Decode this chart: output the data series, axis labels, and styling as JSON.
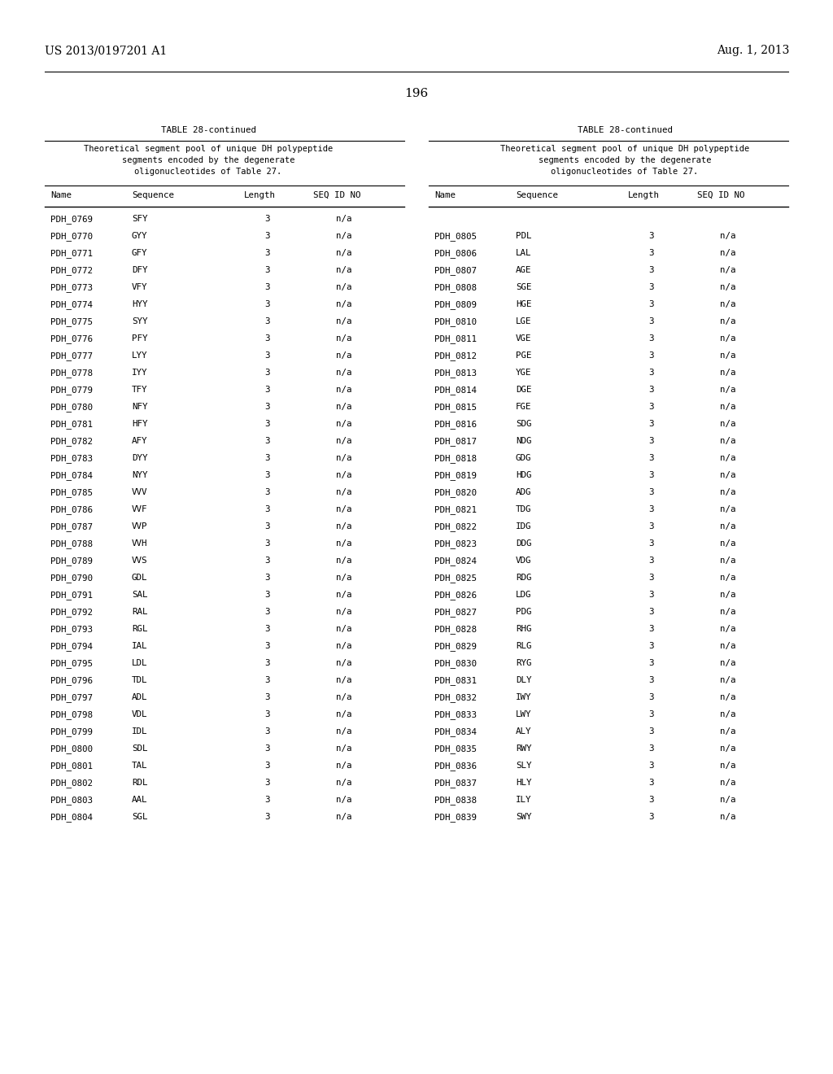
{
  "page_number": "196",
  "patent_left": "US 2013/0197201 A1",
  "patent_right": "Aug. 1, 2013",
  "table_title": "TABLE 28-continued",
  "table_header_text": "Theoretical segment pool of unique DH polypeptide\nsegments encoded by the degenerate\noligonucleotides of Table 27.",
  "col_headers": [
    "Name",
    "Sequence",
    "Length",
    "SEQ ID NO"
  ],
  "left_data": [
    [
      "PDH_0769",
      "SFY",
      "3",
      "n/a"
    ],
    [
      "PDH_0770",
      "GYY",
      "3",
      "n/a"
    ],
    [
      "PDH_0771",
      "GFY",
      "3",
      "n/a"
    ],
    [
      "PDH_0772",
      "DFY",
      "3",
      "n/a"
    ],
    [
      "PDH_0773",
      "VFY",
      "3",
      "n/a"
    ],
    [
      "PDH_0774",
      "HYY",
      "3",
      "n/a"
    ],
    [
      "PDH_0775",
      "SYY",
      "3",
      "n/a"
    ],
    [
      "PDH_0776",
      "PFY",
      "3",
      "n/a"
    ],
    [
      "PDH_0777",
      "LYY",
      "3",
      "n/a"
    ],
    [
      "PDH_0778",
      "IYY",
      "3",
      "n/a"
    ],
    [
      "PDH_0779",
      "TFY",
      "3",
      "n/a"
    ],
    [
      "PDH_0780",
      "NFY",
      "3",
      "n/a"
    ],
    [
      "PDH_0781",
      "HFY",
      "3",
      "n/a"
    ],
    [
      "PDH_0782",
      "AFY",
      "3",
      "n/a"
    ],
    [
      "PDH_0783",
      "DYY",
      "3",
      "n/a"
    ],
    [
      "PDH_0784",
      "NYY",
      "3",
      "n/a"
    ],
    [
      "PDH_0785",
      "VVV",
      "3",
      "n/a"
    ],
    [
      "PDH_0786",
      "VVF",
      "3",
      "n/a"
    ],
    [
      "PDH_0787",
      "VVP",
      "3",
      "n/a"
    ],
    [
      "PDH_0788",
      "VVH",
      "3",
      "n/a"
    ],
    [
      "PDH_0789",
      "VVS",
      "3",
      "n/a"
    ],
    [
      "PDH_0790",
      "GDL",
      "3",
      "n/a"
    ],
    [
      "PDH_0791",
      "SAL",
      "3",
      "n/a"
    ],
    [
      "PDH_0792",
      "RAL",
      "3",
      "n/a"
    ],
    [
      "PDH_0793",
      "RGL",
      "3",
      "n/a"
    ],
    [
      "PDH_0794",
      "IAL",
      "3",
      "n/a"
    ],
    [
      "PDH_0795",
      "LDL",
      "3",
      "n/a"
    ],
    [
      "PDH_0796",
      "TDL",
      "3",
      "n/a"
    ],
    [
      "PDH_0797",
      "ADL",
      "3",
      "n/a"
    ],
    [
      "PDH_0798",
      "VDL",
      "3",
      "n/a"
    ],
    [
      "PDH_0799",
      "IDL",
      "3",
      "n/a"
    ],
    [
      "PDH_0800",
      "SDL",
      "3",
      "n/a"
    ],
    [
      "PDH_0801",
      "TAL",
      "3",
      "n/a"
    ],
    [
      "PDH_0802",
      "RDL",
      "3",
      "n/a"
    ],
    [
      "PDH_0803",
      "AAL",
      "3",
      "n/a"
    ],
    [
      "PDH_0804",
      "SGL",
      "3",
      "n/a"
    ]
  ],
  "right_data": [
    [
      "PDH_0805",
      "PDL",
      "3",
      "n/a"
    ],
    [
      "PDH_0806",
      "LAL",
      "3",
      "n/a"
    ],
    [
      "PDH_0807",
      "AGE",
      "3",
      "n/a"
    ],
    [
      "PDH_0808",
      "SGE",
      "3",
      "n/a"
    ],
    [
      "PDH_0809",
      "HGE",
      "3",
      "n/a"
    ],
    [
      "PDH_0810",
      "LGE",
      "3",
      "n/a"
    ],
    [
      "PDH_0811",
      "VGE",
      "3",
      "n/a"
    ],
    [
      "PDH_0812",
      "PGE",
      "3",
      "n/a"
    ],
    [
      "PDH_0813",
      "YGE",
      "3",
      "n/a"
    ],
    [
      "PDH_0814",
      "DGE",
      "3",
      "n/a"
    ],
    [
      "PDH_0815",
      "FGE",
      "3",
      "n/a"
    ],
    [
      "PDH_0816",
      "SDG",
      "3",
      "n/a"
    ],
    [
      "PDH_0817",
      "NDG",
      "3",
      "n/a"
    ],
    [
      "PDH_0818",
      "GDG",
      "3",
      "n/a"
    ],
    [
      "PDH_0819",
      "HDG",
      "3",
      "n/a"
    ],
    [
      "PDH_0820",
      "ADG",
      "3",
      "n/a"
    ],
    [
      "PDH_0821",
      "TDG",
      "3",
      "n/a"
    ],
    [
      "PDH_0822",
      "IDG",
      "3",
      "n/a"
    ],
    [
      "PDH_0823",
      "DDG",
      "3",
      "n/a"
    ],
    [
      "PDH_0824",
      "VDG",
      "3",
      "n/a"
    ],
    [
      "PDH_0825",
      "RDG",
      "3",
      "n/a"
    ],
    [
      "PDH_0826",
      "LDG",
      "3",
      "n/a"
    ],
    [
      "PDH_0827",
      "PDG",
      "3",
      "n/a"
    ],
    [
      "PDH_0828",
      "RHG",
      "3",
      "n/a"
    ],
    [
      "PDH_0829",
      "RLG",
      "3",
      "n/a"
    ],
    [
      "PDH_0830",
      "RYG",
      "3",
      "n/a"
    ],
    [
      "PDH_0831",
      "DLY",
      "3",
      "n/a"
    ],
    [
      "PDH_0832",
      "IWY",
      "3",
      "n/a"
    ],
    [
      "PDH_0833",
      "LWY",
      "3",
      "n/a"
    ],
    [
      "PDH_0834",
      "ALY",
      "3",
      "n/a"
    ],
    [
      "PDH_0835",
      "RWY",
      "3",
      "n/a"
    ],
    [
      "PDH_0836",
      "SLY",
      "3",
      "n/a"
    ],
    [
      "PDH_0837",
      "HLY",
      "3",
      "n/a"
    ],
    [
      "PDH_0838",
      "ILY",
      "3",
      "n/a"
    ],
    [
      "PDH_0839",
      "SWY",
      "3",
      "n/a"
    ]
  ],
  "background_color": "#ffffff",
  "text_color": "#000000",
  "font_size": 7.8,
  "mono_font": "monospace"
}
